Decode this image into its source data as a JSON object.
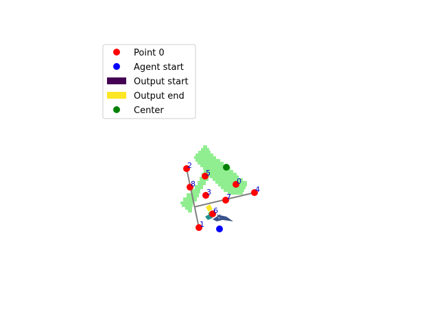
{
  "colors": {
    "background": "#ffffff",
    "region": "#90ee90",
    "point": "#ff0000",
    "point_label": "#0000cd",
    "agent_start": "#0000ff",
    "output_start": "#440154",
    "output_end": "#fde725",
    "center": "#008000",
    "line": "#808080",
    "arrow": "#3b528b"
  },
  "legend": {
    "placement": "upper-left",
    "items": [
      {
        "label": "Point 0",
        "marker": "circle",
        "color": "#ff0000"
      },
      {
        "label": "Agent start",
        "marker": "circle",
        "color": "#0000ff"
      },
      {
        "label": "Output start",
        "marker": "rect",
        "color": "#440154"
      },
      {
        "label": "Output end",
        "marker": "rect",
        "color": "#fde725"
      },
      {
        "label": "Center",
        "marker": "circle",
        "color": "#008000"
      }
    ]
  },
  "points": [
    {
      "label": "0"
    },
    {
      "label": "1"
    },
    {
      "label": "2"
    },
    {
      "label": "3"
    },
    {
      "label": "4"
    },
    {
      "label": "5"
    },
    {
      "label": "6"
    },
    {
      "label": "7"
    },
    {
      "label": "8"
    }
  ],
  "lines": [
    {
      "from": "2",
      "to": "1"
    },
    {
      "from": "4",
      "to": "junction"
    }
  ],
  "agent_start": {
    "visible": true
  },
  "center": {
    "visible": true
  },
  "output_path": {
    "from_color": "#440154",
    "to_color": "#fde725"
  }
}
